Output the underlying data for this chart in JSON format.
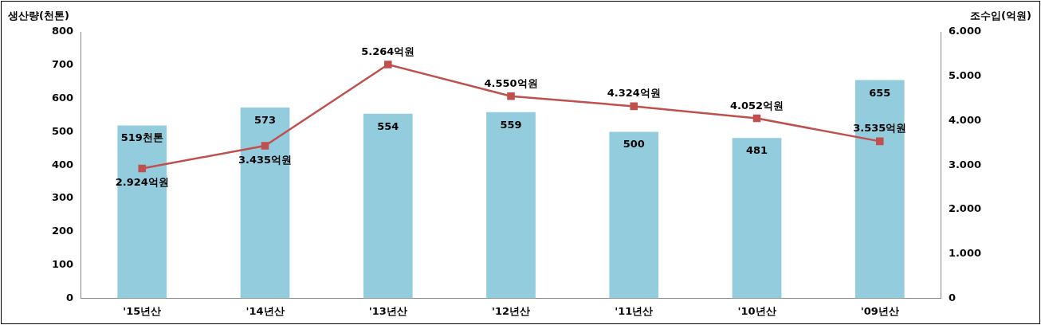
{
  "chart_data": {
    "type": "bar",
    "categories": [
      "'15년산",
      "'14년산",
      "'13년산",
      "'12년산",
      "'11년산",
      "'10년산",
      "'09년산"
    ],
    "ylabel": "생산량(천톤)",
    "y2label": "조수입(억원)",
    "series": [
      {
        "color": "#93cddd",
        "values": [
          519,
          573,
          554,
          559,
          500,
          481,
          655
        ],
        "value_labels": [
          "519천톤",
          "573",
          "554",
          "559",
          "500",
          "481",
          "655"
        ]
      },
      {
        "type": "line",
        "axis": "y2",
        "color": "#c0504d",
        "marker": "square",
        "values": [
          2924,
          3435,
          5264,
          4550,
          4324,
          4052,
          3535
        ],
        "value_labels": [
          "2.924억원",
          "3.435억원",
          "5.264억원",
          "4.550억원",
          "4.324억원",
          "4.052억원",
          "3.535억원"
        ]
      }
    ],
    "ylim": [
      0,
      800
    ],
    "yticks": [
      0,
      100,
      200,
      300,
      400,
      500,
      600,
      700,
      800
    ],
    "y2lim": [
      0,
      6000
    ],
    "y2ticks": [
      0,
      {
        "value": 1000,
        "label": "1.000"
      },
      {
        "value": 2000,
        "label": "2.000"
      },
      {
        "value": 3000,
        "label": "3.000"
      },
      {
        "value": 4000,
        "label": "4.000"
      },
      {
        "value": 5000,
        "label": "5.000"
      },
      {
        "value": 6000,
        "label": "6.000"
      }
    ],
    "grid": false,
    "legend": false
  }
}
